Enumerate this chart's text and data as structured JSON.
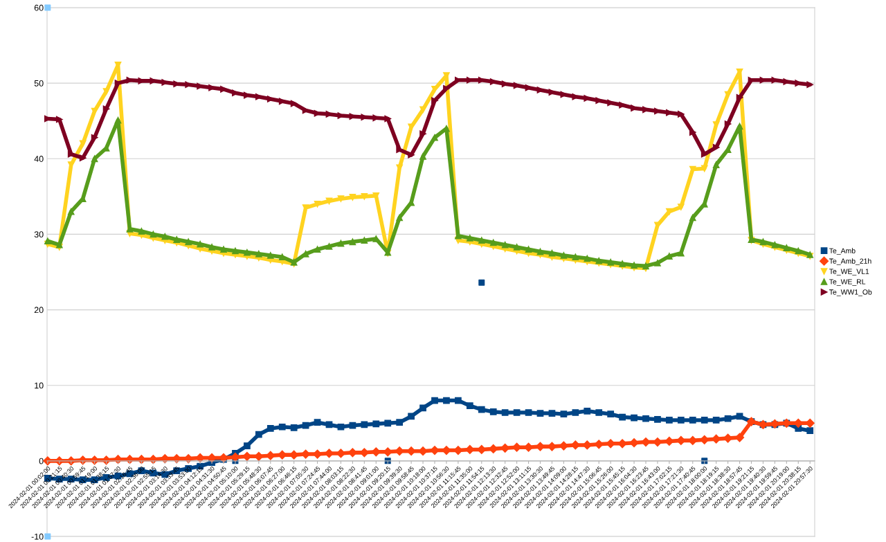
{
  "chart_data": {
    "type": "line",
    "legend": "right",
    "grid": "y",
    "line_style": "solid",
    "ylim": [
      -10,
      60
    ],
    "yticks": [
      -10,
      0,
      10,
      20,
      30,
      40,
      50,
      60
    ],
    "categories": [
      "2024-02-01 00:02:00",
      "2024-02-01 00:21:15",
      "2024-02-01 00:40:30",
      "2024-02-01 00:59:45",
      "2024-02-01 01:19:00",
      "2024-02-01 01:38:15",
      "2024-02-01 01:57:30",
      "2024-02-01 02:16:45",
      "2024-02-01 02:36:00",
      "2024-02-01 02:55:15",
      "2024-02-01 03:14:30",
      "2024-02-01 03:33:45",
      "2024-02-01 03:53:00",
      "2024-02-01 04:12:15",
      "2024-02-01 04:31:30",
      "2024-02-01 04:50:45",
      "2024-02-01 05:10:00",
      "2024-02-01 05:29:15",
      "2024-02-01 05:48:30",
      "2024-02-01 06:07:45",
      "2024-02-01 06:27:00",
      "2024-02-01 06:46:15",
      "2024-02-01 07:05:30",
      "2024-02-01 07:24:45",
      "2024-02-01 07:44:00",
      "2024-02-01 08:03:15",
      "2024-02-01 08:22:30",
      "2024-02-01 08:41:45",
      "2024-02-01 09:01:00",
      "2024-02-01 09:20:15",
      "2024-02-01 09:39:30",
      "2024-02-01 09:58:45",
      "2024-02-01 10:18:00",
      "2024-02-01 10:37:15",
      "2024-02-01 10:56:30",
      "2024-02-01 11:15:45",
      "2024-02-01 11:35:00",
      "2024-02-01 11:54:15",
      "2024-02-01 12:13:30",
      "2024-02-01 12:32:45",
      "2024-02-01 12:52:00",
      "2024-02-01 13:11:15",
      "2024-02-01 13:30:30",
      "2024-02-01 13:49:45",
      "2024-02-01 14:09:00",
      "2024-02-01 14:28:15",
      "2024-02-01 14:47:30",
      "2024-02-01 15:06:45",
      "2024-02-01 15:26:00",
      "2024-02-01 15:45:15",
      "2024-02-01 16:04:30",
      "2024-02-01 16:23:45",
      "2024-02-01 16:43:00",
      "2024-02-01 17:02:15",
      "2024-02-01 17:21:30",
      "2024-02-01 17:40:45",
      "2024-02-01 18:00:00",
      "2024-02-01 18:19:15",
      "2024-02-01 18:38:30",
      "2024-02-01 18:57:45",
      "2024-02-01 19:21:15",
      "2024-02-01 19:40:30",
      "2024-02-01 19:59:45",
      "2024-02-01 20:19:00",
      "2024-02-01 20:38:15",
      "2024-02-01 20:57:30"
    ],
    "series": [
      {
        "name": "Te_Amb",
        "color": "#004586",
        "marker": "square",
        "values": [
          -2.3,
          -2.4,
          -2.4,
          -2.5,
          -2.5,
          -2.2,
          -2.0,
          -1.7,
          -1.3,
          -1.6,
          -1.8,
          -1.3,
          -1.0,
          -0.7,
          -0.2,
          0.2,
          1.0,
          2.0,
          3.5,
          4.3,
          4.5,
          4.4,
          4.7,
          5.1,
          4.8,
          4.5,
          4.7,
          4.8,
          4.9,
          5.0,
          5.1,
          5.9,
          7.0,
          8.0,
          8.0,
          8.0,
          7.3,
          6.8,
          6.5,
          6.4,
          6.4,
          6.4,
          6.3,
          6.3,
          6.2,
          6.4,
          6.6,
          6.4,
          6.2,
          5.8,
          5.7,
          5.6,
          5.5,
          5.4,
          5.4,
          5.4,
          5.4,
          5.4,
          5.6,
          5.9,
          5.2,
          4.8,
          4.8,
          5.0,
          4.3,
          4.0
        ]
      },
      {
        "type": "scatter",
        "color": "#004586",
        "marker": "square",
        "values": [
          null,
          null,
          null,
          null,
          null,
          null,
          null,
          null,
          null,
          null,
          null,
          null,
          null,
          null,
          null,
          null,
          0,
          null,
          null,
          null,
          null,
          null,
          null,
          null,
          null,
          null,
          null,
          null,
          null,
          0,
          null,
          null,
          null,
          null,
          null,
          null,
          null,
          23.6,
          null,
          null,
          null,
          null,
          null,
          null,
          null,
          null,
          null,
          null,
          null,
          null,
          null,
          null,
          null,
          null,
          null,
          null,
          0,
          null,
          null,
          null,
          null,
          null,
          null,
          null,
          null,
          null
        ]
      },
      {
        "name": "Te_Amb_21h",
        "color": "#ff420e",
        "marker": "diamond",
        "values": [
          0,
          0,
          0,
          0.1,
          0.1,
          0.1,
          0.2,
          0.2,
          0.2,
          0.2,
          0.3,
          0.3,
          0.3,
          0.4,
          0.4,
          0.4,
          0.5,
          0.6,
          0.6,
          0.7,
          0.8,
          0.8,
          0.9,
          0.9,
          1.0,
          1.0,
          1.1,
          1.1,
          1.2,
          1.2,
          1.3,
          1.3,
          1.3,
          1.4,
          1.4,
          1.4,
          1.5,
          1.5,
          1.6,
          1.7,
          1.8,
          1.8,
          1.9,
          1.9,
          2.0,
          2.1,
          2.1,
          2.2,
          2.3,
          2.3,
          2.4,
          2.5,
          2.5,
          2.6,
          2.7,
          2.7,
          2.8,
          2.9,
          3.0,
          3.1,
          5.2,
          4.8,
          4.9,
          5.0,
          5.0,
          5.0
        ]
      },
      {
        "name": "Te_WE_VL1",
        "color": "#ffd320",
        "marker": "triangle_down",
        "values": [
          28.7,
          28.3,
          39.2,
          42.0,
          46.3,
          48.9,
          52.4,
          30.1,
          29.9,
          29.5,
          29.2,
          28.9,
          28.5,
          28.1,
          27.8,
          27.5,
          27.3,
          27.1,
          26.9,
          26.6,
          26.4,
          26.1,
          33.5,
          34.0,
          34.4,
          34.7,
          34.9,
          35.0,
          35.1,
          27.5,
          38.8,
          44.2,
          46.5,
          49.2,
          51.0,
          29.2,
          29.0,
          28.7,
          28.4,
          28.1,
          27.8,
          27.5,
          27.3,
          27.0,
          26.8,
          26.6,
          26.4,
          26.2,
          26.0,
          25.8,
          25.6,
          25.5,
          31.2,
          33.0,
          33.6,
          38.6,
          38.7,
          44.5,
          48.5,
          51.5,
          29.2,
          28.7,
          28.3,
          27.9,
          27.5,
          27.1
        ]
      },
      {
        "name": "Te_WE_RL",
        "color": "#579d1c",
        "marker": "triangle_up",
        "values": [
          29.1,
          28.6,
          33.0,
          34.7,
          40.0,
          41.4,
          45.1,
          30.7,
          30.4,
          30.0,
          29.7,
          29.3,
          29.0,
          28.7,
          28.3,
          28.0,
          27.8,
          27.6,
          27.4,
          27.2,
          27.0,
          26.3,
          27.4,
          28.0,
          28.4,
          28.8,
          29.0,
          29.2,
          29.4,
          27.6,
          32.2,
          34.2,
          40.3,
          42.8,
          44.0,
          29.8,
          29.5,
          29.2,
          28.9,
          28.6,
          28.3,
          28.0,
          27.7,
          27.5,
          27.2,
          27.0,
          26.8,
          26.5,
          26.3,
          26.1,
          25.9,
          25.8,
          26.2,
          27.1,
          27.5,
          32.2,
          34.0,
          39.2,
          41.2,
          44.3,
          29.3,
          29.0,
          28.6,
          28.2,
          27.8,
          27.3
        ]
      },
      {
        "name": "Te_WW1_Ob",
        "color": "#7e0021",
        "marker": "triangle_right",
        "values": [
          45.3,
          45.2,
          40.6,
          40.1,
          42.8,
          46.6,
          50.0,
          50.4,
          50.3,
          50.3,
          50.1,
          49.9,
          49.8,
          49.6,
          49.4,
          49.2,
          48.7,
          48.4,
          48.2,
          47.9,
          47.6,
          47.3,
          46.4,
          46.0,
          45.9,
          45.7,
          45.6,
          45.5,
          45.4,
          45.3,
          41.2,
          40.5,
          43.3,
          47.7,
          49.3,
          50.4,
          50.4,
          50.4,
          50.2,
          49.9,
          49.7,
          49.4,
          49.1,
          48.8,
          48.5,
          48.2,
          48.0,
          47.7,
          47.4,
          47.1,
          46.7,
          46.5,
          46.3,
          46.1,
          45.9,
          43.5,
          40.6,
          41.5,
          44.6,
          48.1,
          50.4,
          50.4,
          50.4,
          50.2,
          50.0,
          49.8
        ]
      },
      {
        "type": "scatter",
        "color": "#83caff",
        "marker": "square",
        "values": [
          60,
          null,
          null,
          null,
          null,
          null,
          null,
          null,
          null,
          null,
          null,
          null,
          null,
          null,
          null,
          null,
          null,
          null,
          null,
          null,
          null,
          null,
          null,
          null,
          null,
          null,
          null,
          null,
          null,
          null,
          null,
          null,
          null,
          null,
          null,
          null,
          null,
          null,
          null,
          null,
          null,
          null,
          null,
          null,
          null,
          null,
          null,
          null,
          null,
          null,
          null,
          null,
          null,
          null,
          null,
          null,
          null,
          null,
          null,
          null,
          null,
          null,
          null,
          null,
          null,
          null
        ]
      },
      {
        "type": "scatter",
        "color": "#83caff",
        "marker": "square",
        "values": [
          -10,
          null,
          null,
          null,
          null,
          null,
          null,
          null,
          null,
          null,
          null,
          null,
          null,
          null,
          null,
          null,
          null,
          null,
          null,
          null,
          null,
          null,
          null,
          null,
          null,
          null,
          null,
          null,
          null,
          null,
          null,
          null,
          null,
          null,
          null,
          null,
          null,
          null,
          null,
          null,
          null,
          null,
          null,
          null,
          null,
          null,
          null,
          null,
          null,
          null,
          null,
          null,
          null,
          null,
          null,
          null,
          null,
          null,
          null,
          null,
          null,
          null,
          null,
          null,
          null,
          null
        ]
      }
    ]
  }
}
